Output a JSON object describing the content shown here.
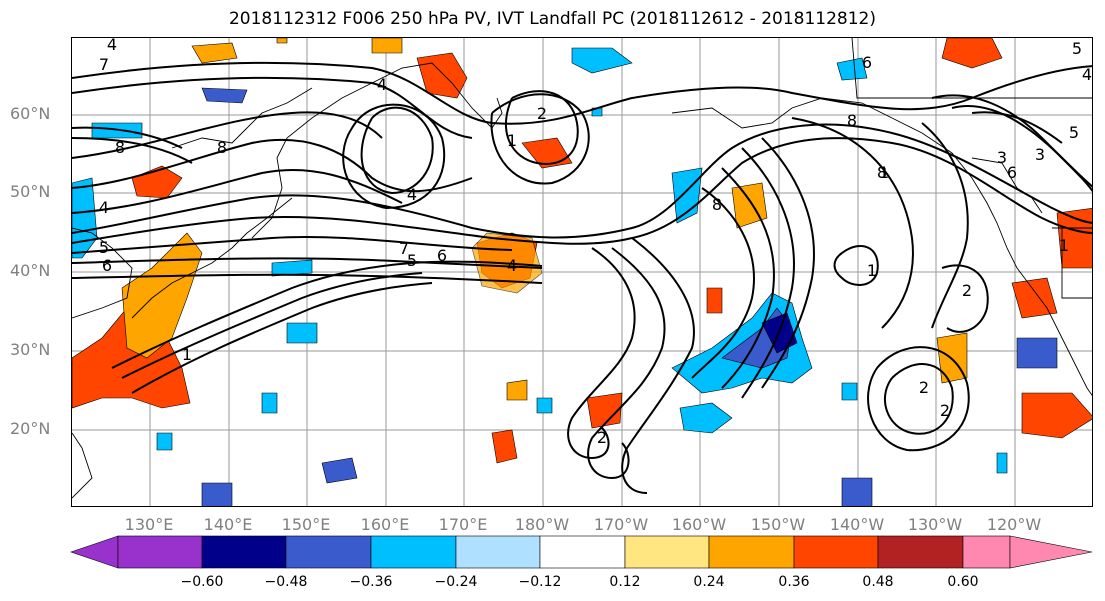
{
  "title": "2018112312 F006 250 hPa PV, IVT Landfall PC (2018112612 - 2018112812)",
  "lat_labels": [
    "60°N",
    "50°N",
    "40°N",
    "30°N",
    "20°N"
  ],
  "lon_labels": [
    "130°E",
    "140°E",
    "150°E",
    "160°E",
    "170°E",
    "180°W",
    "170°W",
    "160°W",
    "150°W",
    "140°W",
    "130°W",
    "120°W"
  ],
  "colorbar": {
    "ticks": [
      "−0.60",
      "−0.48",
      "−0.36",
      "−0.24",
      "−0.12",
      "0.12",
      "0.24",
      "0.36",
      "0.48",
      "0.60"
    ],
    "colors": [
      "#9932cc",
      "#00008b",
      "#3a5bcc",
      "#00bfff",
      "#b0e0ff",
      "#ffffff",
      "#ffe680",
      "#ffa500",
      "#ff4500",
      "#b22222",
      "#ff88b0"
    ]
  },
  "contour_labels": [
    "4",
    "7",
    "4",
    "8",
    "8",
    "4",
    "5",
    "6",
    "1",
    "7",
    "5",
    "6",
    "4",
    "4",
    "1",
    "2",
    "8",
    "6",
    "8",
    "8",
    "5",
    "6",
    "3",
    "4",
    "5",
    "3",
    "1",
    "2",
    "2",
    "2",
    "1",
    "2",
    "1"
  ],
  "colors": {
    "contour": "#000000",
    "grid": "#9a9a9a",
    "axis_label": "#808080"
  }
}
